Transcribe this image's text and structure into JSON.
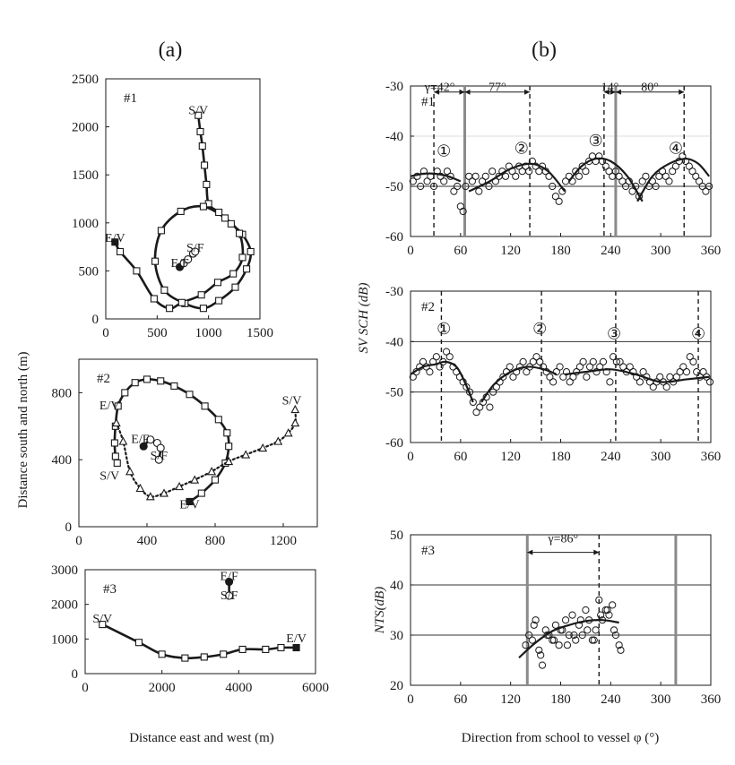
{
  "panel_labels": {
    "a": "(a)",
    "b": "(b)"
  },
  "left_ylabel": "Distance south and north (m)",
  "left_xlabel": "Distance east and west (m)",
  "right_xlabel": "Direction from school to vessel φ (°)",
  "right_ylabel_top": "SV SCH (dB)",
  "colors": {
    "ink": "#1a1a1a",
    "grid": "#333333",
    "gray_line": "#8a8a8a"
  },
  "chart_data": [
    {
      "id": "a1",
      "type": "scatter",
      "title": "#1",
      "xlim": [
        0,
        1500
      ],
      "ylim": [
        0,
        2500
      ],
      "xticks": [
        0,
        500,
        1000,
        1500
      ],
      "yticks": [
        0,
        500,
        1000,
        1500,
        2000,
        2500
      ],
      "xtick_labels": [
        "0",
        "500",
        "1000",
        "1500"
      ],
      "ytick_labels": [
        "0",
        "500",
        "1000",
        "1500",
        "2000",
        "2500"
      ],
      "series": [
        {
          "name": "vessel track",
          "marker": "square",
          "x": [
            900,
            920,
            940,
            960,
            980,
            1000,
            1100,
            1220,
            1330,
            1410,
            1370,
            1260,
            1100,
            950,
            770,
            570,
            480,
            540,
            730,
            950,
            1160,
            1300,
            1330,
            1240,
            1090,
            930,
            740,
            620,
            470,
            300,
            140,
            90
          ],
          "y": [
            2120,
            1950,
            1800,
            1600,
            1400,
            1200,
            1110,
            990,
            880,
            700,
            520,
            330,
            190,
            110,
            160,
            300,
            600,
            920,
            1120,
            1170,
            1050,
            890,
            640,
            470,
            380,
            250,
            170,
            110,
            210,
            500,
            700,
            800
          ]
        },
        {
          "name": "fish school track",
          "marker": "circle",
          "x": [
            720,
            760,
            800,
            850,
            870
          ],
          "y": [
            540,
            580,
            620,
            680,
            700
          ]
        }
      ],
      "annotations": [
        {
          "text": "S/V",
          "x": 900,
          "y": 2130
        },
        {
          "text": "E/V",
          "x": 90,
          "y": 800
        },
        {
          "text": "S/F",
          "x": 870,
          "y": 700
        },
        {
          "text": "E/F",
          "x": 720,
          "y": 540
        }
      ]
    },
    {
      "id": "a2",
      "type": "scatter",
      "title": "#2",
      "xlim": [
        0,
        1400
      ],
      "ylim": [
        0,
        1000
      ],
      "xticks": [
        0,
        400,
        800,
        1200
      ],
      "yticks": [
        0,
        400,
        800
      ],
      "xtick_labels": [
        "0",
        "400",
        "800",
        "1200"
      ],
      "ytick_labels": [
        "0",
        "400",
        "800"
      ],
      "series": [
        {
          "name": "vessel track (solid)",
          "marker": "square",
          "x": [
            650,
            720,
            800,
            860,
            880,
            870,
            820,
            740,
            650,
            560,
            480,
            400,
            330,
            270,
            230,
            215,
            210,
            215,
            225
          ],
          "y": [
            150,
            200,
            280,
            380,
            480,
            560,
            640,
            720,
            790,
            840,
            870,
            880,
            860,
            800,
            720,
            600,
            500,
            420,
            380
          ]
        },
        {
          "name": "vessel track (dotted)",
          "marker": "triangle",
          "x": [
            220,
            260,
            300,
            360,
            420,
            500,
            590,
            680,
            780,
            880,
            980,
            1080,
            1170,
            1230,
            1270,
            1270
          ],
          "y": [
            620,
            510,
            330,
            230,
            180,
            200,
            240,
            280,
            330,
            390,
            430,
            470,
            510,
            560,
            620,
            700
          ]
        },
        {
          "name": "fish school track",
          "marker": "circle",
          "x": [
            380,
            420,
            460,
            480,
            470
          ],
          "y": [
            480,
            520,
            500,
            470,
            400
          ]
        }
      ],
      "annotations": [
        {
          "text": "E/V",
          "x": 180,
          "y": 700
        },
        {
          "text": "S/V",
          "x": 1250,
          "y": 730
        },
        {
          "text": "E/F",
          "x": 360,
          "y": 500
        },
        {
          "text": "S/F",
          "x": 470,
          "y": 400
        },
        {
          "text": "S/V",
          "x": 180,
          "y": 280
        },
        {
          "text": "E/V",
          "x": 650,
          "y": 110
        }
      ]
    },
    {
      "id": "a3",
      "type": "scatter",
      "title": "#3",
      "xlim": [
        0,
        6000
      ],
      "ylim": [
        0,
        3000
      ],
      "xticks": [
        0,
        2000,
        4000,
        6000
      ],
      "yticks": [
        0,
        1000,
        2000,
        3000
      ],
      "xtick_labels": [
        "0",
        "2000",
        "4000",
        "6000"
      ],
      "ytick_labels": [
        "0",
        "1000",
        "2000",
        "3000"
      ],
      "series": [
        {
          "name": "vessel track",
          "marker": "square",
          "x": [
            450,
            1400,
            2000,
            2600,
            3100,
            3600,
            4100,
            4700,
            5100,
            5500
          ],
          "y": [
            1420,
            900,
            560,
            450,
            480,
            560,
            700,
            700,
            750,
            750
          ]
        },
        {
          "name": "fish school",
          "marker": "circle",
          "x": [
            3750,
            3750
          ],
          "y": [
            2650,
            2250
          ]
        }
      ],
      "annotations": [
        {
          "text": "S/V",
          "x": 450,
          "y": 1480
        },
        {
          "text": "E/V",
          "x": 5500,
          "y": 900
        },
        {
          "text": "E/F",
          "x": 3750,
          "y": 2700
        },
        {
          "text": "S/F",
          "x": 3750,
          "y": 2150
        }
      ]
    },
    {
      "id": "b1",
      "type": "scatter",
      "title": "#1",
      "xlim": [
        0,
        360
      ],
      "ylim": [
        -60,
        -30
      ],
      "xticks": [
        0,
        60,
        120,
        180,
        240,
        300,
        360
      ],
      "yticks": [
        -60,
        -50,
        -40,
        -30
      ],
      "xtick_labels": [
        "0",
        "60",
        "120",
        "180",
        "240",
        "300",
        "360"
      ],
      "ytick_labels": [
        "-60",
        "-50",
        "-40",
        "-30"
      ],
      "hlines": [
        -50
      ],
      "vlines_dashed": [
        28,
        143,
        232,
        328
      ],
      "vlines_gray": [
        65,
        246
      ],
      "points_x": [
        3,
        8,
        12,
        16,
        20,
        24,
        28,
        32,
        36,
        40,
        44,
        48,
        52,
        56,
        60,
        63,
        66,
        70,
        74,
        78,
        82,
        86,
        90,
        94,
        98,
        102,
        106,
        110,
        114,
        118,
        122,
        126,
        130,
        134,
        138,
        142,
        146,
        150,
        154,
        158,
        162,
        166,
        170,
        174,
        178,
        182,
        186,
        190,
        194,
        198,
        202,
        206,
        210,
        214,
        218,
        222,
        226,
        230,
        234,
        238,
        242,
        246,
        250,
        254,
        258,
        262,
        266,
        270,
        274,
        278,
        282,
        286,
        290,
        294,
        298,
        302,
        306,
        310,
        314,
        318,
        322,
        326,
        330,
        334,
        338,
        342,
        346,
        350,
        354,
        358
      ],
      "points_y": [
        -49,
        -48,
        -50,
        -47,
        -49,
        -48,
        -50,
        -47,
        -48,
        -49,
        -47,
        -48,
        -51,
        -50,
        -54,
        -55,
        -50,
        -48,
        -49,
        -48,
        -51,
        -49,
        -48,
        -50,
        -47,
        -49,
        -48,
        -47,
        -48,
        -46,
        -47,
        -48,
        -46,
        -47,
        -46,
        -47,
        -45,
        -46,
        -47,
        -46,
        -47,
        -48,
        -50,
        -52,
        -53,
        -51,
        -49,
        -48,
        -49,
        -47,
        -48,
        -46,
        -47,
        -45,
        -44,
        -45,
        -44,
        -45,
        -46,
        -47,
        -48,
        -47,
        -48,
        -49,
        -50,
        -49,
        -51,
        -50,
        -52,
        -49,
        -48,
        -50,
        -49,
        -50,
        -48,
        -47,
        -48,
        -49,
        -47,
        -46,
        -45,
        -44,
        -45,
        -46,
        -47,
        -48,
        -49,
        -50,
        -51,
        -50
      ],
      "fit_curves": [
        {
          "x": [
            0,
            15,
            30,
            45,
            60
          ],
          "y": [
            -48,
            -47.5,
            -47.5,
            -48,
            -49
          ]
        },
        {
          "x": [
            70,
            95,
            120,
            145,
            165,
            185
          ],
          "y": [
            -51,
            -49,
            -46.5,
            -45.5,
            -47,
            -51
          ]
        },
        {
          "x": [
            190,
            205,
            222,
            240,
            260,
            278
          ],
          "y": [
            -49,
            -46,
            -44.5,
            -45,
            -48,
            -53
          ]
        },
        {
          "x": [
            272,
            290,
            310,
            330,
            345,
            358
          ],
          "y": [
            -53,
            -48,
            -45.5,
            -44.5,
            -45.5,
            -48
          ]
        }
      ],
      "annotations": [
        {
          "text": "γ=42°",
          "x": 35,
          "y": -31
        },
        {
          "text": "77°",
          "x": 104,
          "y": -31
        },
        {
          "text": "14°",
          "x": 239,
          "y": -31
        },
        {
          "text": "80°",
          "x": 287,
          "y": -31
        },
        {
          "text": "①",
          "x": 40,
          "y": -44
        },
        {
          "text": "②",
          "x": 133,
          "y": -43.5
        },
        {
          "text": "③",
          "x": 222,
          "y": -42
        },
        {
          "text": "④",
          "x": 318,
          "y": -43.5
        }
      ]
    },
    {
      "id": "b2",
      "type": "scatter",
      "title": "#2",
      "xlim": [
        0,
        360
      ],
      "ylim": [
        -60,
        -30
      ],
      "xticks": [
        0,
        60,
        120,
        180,
        240,
        300,
        360
      ],
      "yticks": [
        -60,
        -50,
        -40,
        -30
      ],
      "xtick_labels": [
        "0",
        "60",
        "120",
        "180",
        "240",
        "300",
        "360"
      ],
      "ytick_labels": [
        "-60",
        "-50",
        "-40",
        "-30"
      ],
      "hlines": [
        -40,
        -50
      ],
      "vlines_dashed": [
        37,
        157,
        246,
        345
      ],
      "points_x": [
        3,
        7,
        11,
        15,
        19,
        23,
        27,
        31,
        35,
        39,
        43,
        47,
        51,
        55,
        59,
        63,
        67,
        71,
        75,
        79,
        83,
        87,
        91,
        95,
        99,
        103,
        107,
        111,
        115,
        119,
        123,
        127,
        131,
        135,
        139,
        143,
        147,
        151,
        155,
        159,
        163,
        167,
        171,
        175,
        179,
        183,
        187,
        191,
        195,
        199,
        203,
        207,
        211,
        215,
        219,
        223,
        227,
        231,
        235,
        239,
        243,
        247,
        251,
        255,
        259,
        263,
        267,
        271,
        275,
        279,
        283,
        287,
        291,
        295,
        299,
        303,
        307,
        311,
        315,
        319,
        323,
        327,
        331,
        335,
        339,
        343,
        347,
        351,
        355,
        359
      ],
      "points_y": [
        -47,
        -46,
        -45,
        -44,
        -45,
        -46,
        -44,
        -43,
        -45,
        -44,
        -42,
        -43,
        -45,
        -46,
        -47,
        -48,
        -49,
        -50,
        -52,
        -54,
        -53,
        -52,
        -51,
        -53,
        -50,
        -49,
        -48,
        -47,
        -46,
        -45,
        -47,
        -46,
        -45,
        -44,
        -46,
        -45,
        -44,
        -43,
        -44,
        -45,
        -46,
        -47,
        -48,
        -46,
        -45,
        -47,
        -46,
        -48,
        -47,
        -46,
        -45,
        -44,
        -47,
        -45,
        -44,
        -46,
        -45,
        -44,
        -46,
        -48,
        -43,
        -44,
        -44,
        -45,
        -46,
        -45,
        -46,
        -47,
        -48,
        -46,
        -47,
        -48,
        -49,
        -48,
        -47,
        -48,
        -49,
        -47,
        -48,
        -47,
        -46,
        -45,
        -46,
        -43,
        -44,
        -46,
        -47,
        -46,
        -47,
        -48
      ],
      "fit_curves": [
        {
          "x": [
            0,
            15,
            30,
            42,
            55,
            65,
            75
          ],
          "y": [
            -46.5,
            -45,
            -44.5,
            -44,
            -45,
            -48,
            -52
          ]
        },
        {
          "x": [
            85,
            100,
            120,
            140,
            160,
            175
          ],
          "y": [
            -52,
            -48.5,
            -46,
            -45,
            -45.5,
            -46.5
          ]
        },
        {
          "x": [
            185,
            210,
            240,
            270,
            300,
            330,
            358
          ],
          "y": [
            -46.5,
            -46,
            -45.5,
            -46.5,
            -48,
            -47.5,
            -47
          ]
        }
      ],
      "annotations": [
        {
          "text": "①",
          "x": 40,
          "y": -38.5
        },
        {
          "text": "②",
          "x": 155,
          "y": -38.5
        },
        {
          "text": "③",
          "x": 244,
          "y": -39.5
        },
        {
          "text": "④",
          "x": 345,
          "y": -39.5
        }
      ]
    },
    {
      "id": "b3",
      "type": "scatter",
      "title": "#3",
      "xlim": [
        0,
        360
      ],
      "ylim": [
        20,
        50
      ],
      "xticks": [
        0,
        60,
        120,
        180,
        240,
        300,
        360
      ],
      "yticks": [
        20,
        30,
        40,
        50
      ],
      "xtick_labels": [
        "0",
        "60",
        "120",
        "180",
        "240",
        "300",
        "360"
      ],
      "ytick_labels": [
        "20",
        "30",
        "40",
        "50"
      ],
      "ylabel": "NTS(dB)",
      "hlines": [
        30,
        40
      ],
      "vlines_dashed": [
        226
      ],
      "vlines_gray": [
        140,
        318
      ],
      "points_x": [
        138,
        142,
        146,
        150,
        154,
        158,
        162,
        166,
        170,
        174,
        178,
        182,
        186,
        190,
        194,
        198,
        202,
        206,
        210,
        214,
        218,
        222,
        226,
        230,
        234,
        238,
        242,
        246,
        250,
        252,
        148,
        156,
        164,
        172,
        180,
        188,
        196,
        204,
        212,
        220,
        228,
        236,
        244
      ],
      "points_y": [
        28,
        30,
        29,
        33,
        27,
        24,
        31,
        30,
        29,
        32,
        28,
        31,
        33,
        30,
        34,
        29,
        32,
        30,
        35,
        33,
        29,
        31,
        37,
        33,
        35,
        34,
        36,
        30,
        28,
        27,
        32,
        26,
        30,
        29,
        31,
        28,
        30,
        33,
        31,
        29,
        34,
        35,
        31
      ],
      "fit_curves": [
        {
          "x": [
            130,
            150,
            170,
            190,
            210,
            230,
            250
          ],
          "y": [
            25.5,
            28.5,
            30.8,
            32,
            32.8,
            33,
            32.5
          ]
        }
      ],
      "annotations": [
        {
          "text": "γ=86°",
          "x": 183,
          "y": 48.5
        }
      ]
    }
  ]
}
